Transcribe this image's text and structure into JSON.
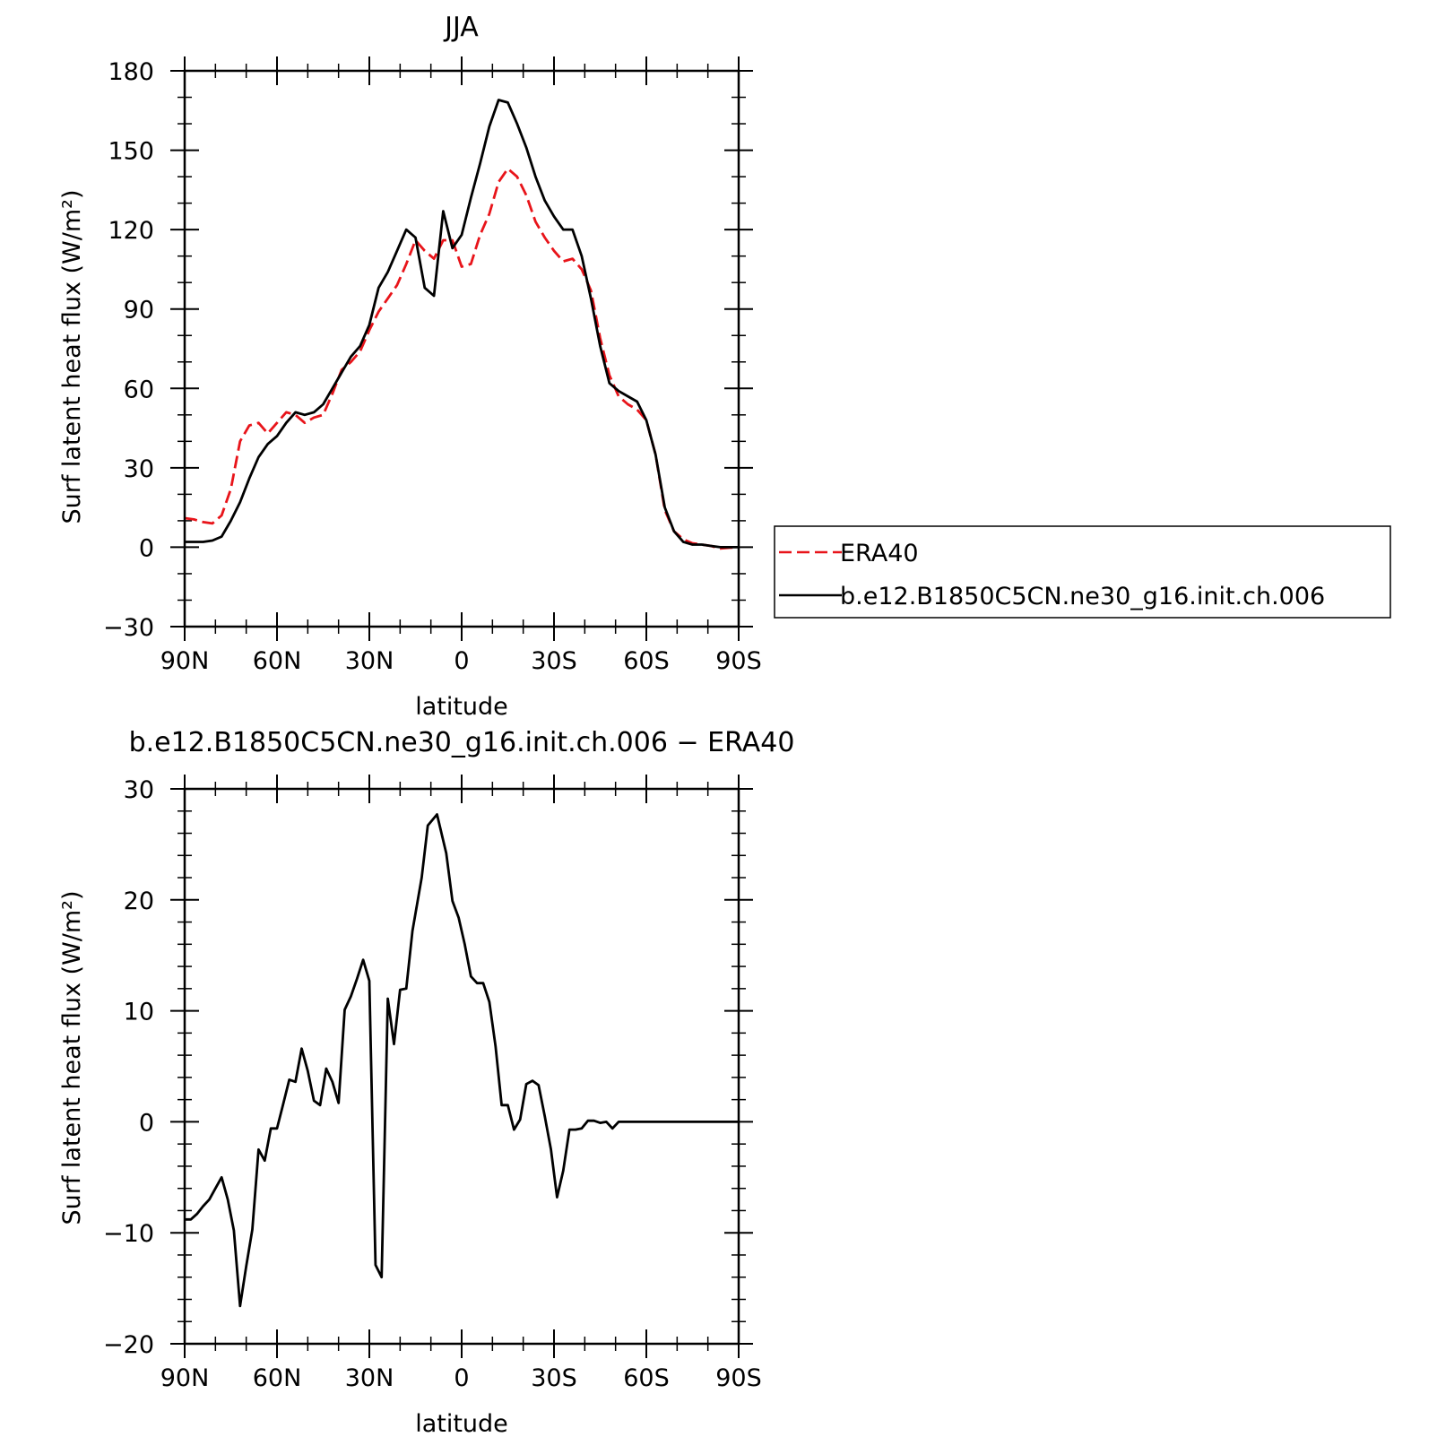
{
  "chart_data": [
    {
      "type": "line",
      "title": "JJA",
      "xlabel": "latitude",
      "ylabel": "Surf latent heat flux (W/m²)",
      "xlim": [
        -90,
        90
      ],
      "ylim": [
        -30,
        180
      ],
      "x_ticks": [
        {
          "value": -90,
          "label": "90N"
        },
        {
          "value": -60,
          "label": "60N"
        },
        {
          "value": -30,
          "label": "30N"
        },
        {
          "value": 0,
          "label": "0"
        },
        {
          "value": 30,
          "label": "30S"
        },
        {
          "value": 60,
          "label": "60S"
        },
        {
          "value": 90,
          "label": "90S"
        }
      ],
      "y_ticks": [
        -30,
        0,
        30,
        60,
        90,
        120,
        150,
        180
      ],
      "grid": false,
      "legend": {
        "placement": "right"
      },
      "series": [
        {
          "name": "ERA40",
          "color": "#e8141a",
          "dash": "dashed",
          "x": [
            -90,
            -87,
            -84,
            -81,
            -78,
            -75,
            -72,
            -69,
            -66,
            -63,
            -60,
            -57,
            -54,
            -51,
            -48,
            -45,
            -42,
            -39,
            -36,
            -33,
            -30,
            -27,
            -24,
            -21,
            -18,
            -15,
            -12,
            -9,
            -6,
            -3,
            0,
            3,
            6,
            9,
            12,
            15,
            18,
            21,
            24,
            27,
            30,
            33,
            36,
            39,
            42,
            45,
            48,
            51,
            54,
            57,
            60,
            63,
            66,
            69,
            72,
            75,
            78,
            81,
            84,
            87,
            90
          ],
          "y": [
            11,
            10.5,
            9.5,
            9,
            12,
            22,
            40,
            46,
            47,
            43,
            47,
            51,
            50,
            47,
            49,
            50,
            58,
            67,
            70,
            74,
            82,
            89,
            94,
            99,
            107,
            116,
            112,
            109,
            116,
            116,
            106,
            107,
            118,
            126,
            138,
            143,
            140,
            133,
            123,
            117,
            112,
            108,
            109,
            105,
            97,
            79,
            65,
            57,
            54,
            52,
            48,
            35,
            14,
            6,
            3,
            1.5,
            1,
            0.5,
            -0.5,
            -0.2,
            0
          ]
        },
        {
          "name": "b.e12.B1850C5CN.ne30_g16.init.ch.006",
          "color": "#000000",
          "dash": "solid",
          "x": [
            -90,
            -87,
            -84,
            -81,
            -78,
            -75,
            -72,
            -69,
            -66,
            -63,
            -60,
            -57,
            -54,
            -51,
            -48,
            -45,
            -42,
            -39,
            -36,
            -33,
            -30,
            -27,
            -24,
            -21,
            -18,
            -15,
            -12,
            -9,
            -6,
            -3,
            0,
            3,
            6,
            9,
            12,
            15,
            18,
            21,
            24,
            27,
            30,
            33,
            36,
            39,
            42,
            45,
            48,
            51,
            54,
            57,
            60,
            63,
            66,
            69,
            72,
            75,
            78,
            81,
            84,
            87,
            90
          ],
          "y": [
            2,
            2,
            2,
            2.5,
            4,
            10,
            17,
            26,
            34,
            39,
            42,
            47,
            51,
            50,
            51,
            54,
            60,
            66,
            72,
            76,
            84,
            98,
            104,
            112,
            120,
            117,
            98,
            95,
            127,
            113,
            118,
            132,
            145,
            159,
            169,
            168,
            160,
            151,
            140,
            131,
            125,
            120,
            120,
            110,
            94,
            76,
            62,
            59,
            57,
            55,
            48,
            35,
            15,
            6,
            2,
            1,
            1,
            0.5,
            0,
            0,
            0
          ]
        }
      ]
    },
    {
      "type": "line",
      "title": "b.e12.B1850C5CN.ne30_g16.init.ch.006 − ERA40",
      "xlabel": "latitude",
      "ylabel": "Surf latent heat flux (W/m²)",
      "xlim": [
        -90,
        90
      ],
      "ylim": [
        -20,
        30
      ],
      "x_ticks": [
        {
          "value": -90,
          "label": "90N"
        },
        {
          "value": -60,
          "label": "60N"
        },
        {
          "value": -30,
          "label": "30N"
        },
        {
          "value": 0,
          "label": "0"
        },
        {
          "value": 30,
          "label": "30S"
        },
        {
          "value": 60,
          "label": "60S"
        },
        {
          "value": 90,
          "label": "90S"
        }
      ],
      "y_ticks": [
        -20,
        -10,
        0,
        10,
        20,
        30
      ],
      "grid": false,
      "series": [
        {
          "color": "#000000",
          "dash": "solid",
          "x": [
            -90,
            -88,
            -86,
            -84,
            -82,
            -80,
            -78,
            -76,
            -74,
            -72,
            -70,
            -68,
            -66,
            -64,
            -62,
            -60,
            -58,
            -56,
            -54,
            -52,
            -50,
            -48,
            -46,
            -44,
            -42,
            -40,
            -38,
            -36,
            -34,
            -32,
            -30,
            -28,
            -26,
            -24,
            -22,
            -20,
            -18,
            -16,
            -13,
            -11,
            -8,
            -5,
            -3,
            -1,
            1,
            3,
            5,
            7,
            9,
            11,
            13,
            15,
            17,
            19,
            21,
            23,
            25,
            27,
            29,
            31,
            33,
            35,
            37,
            39,
            41,
            43,
            45,
            47,
            49,
            51,
            53,
            55,
            57,
            59,
            61,
            63,
            65,
            67,
            69,
            71,
            73,
            75,
            77,
            79,
            81,
            83,
            85,
            87,
            89,
            90
          ],
          "y": [
            -8.8,
            -8.8,
            -8.3,
            -7.6,
            -7,
            -6,
            -5,
            -7,
            -9.8,
            -16.6,
            -13,
            -9.7,
            -2.5,
            -3.5,
            -0.6,
            -0.6,
            1.6,
            3.8,
            3.6,
            6.6,
            4.6,
            1.9,
            1.5,
            4.8,
            3.6,
            1.7,
            10.1,
            11.3,
            12.9,
            14.6,
            12.7,
            -12.9,
            -14,
            11.1,
            7,
            11.9,
            12,
            17.2,
            22,
            26.7,
            27.7,
            24.2,
            19.9,
            18.4,
            16,
            13.1,
            12.5,
            12.5,
            10.8,
            6.8,
            1.5,
            1.5,
            -0.7,
            0.2,
            3.4,
            3.7,
            3.3,
            0.5,
            -2.5,
            -6.8,
            -4.4,
            -0.7,
            -0.7,
            -0.6,
            0.1,
            0.1,
            -0.1,
            0,
            -0.6,
            0,
            0,
            0,
            0,
            0,
            0,
            0,
            0,
            0,
            0,
            0,
            0,
            0,
            0,
            0,
            0,
            0,
            0,
            0,
            0,
            0
          ]
        }
      ]
    }
  ]
}
